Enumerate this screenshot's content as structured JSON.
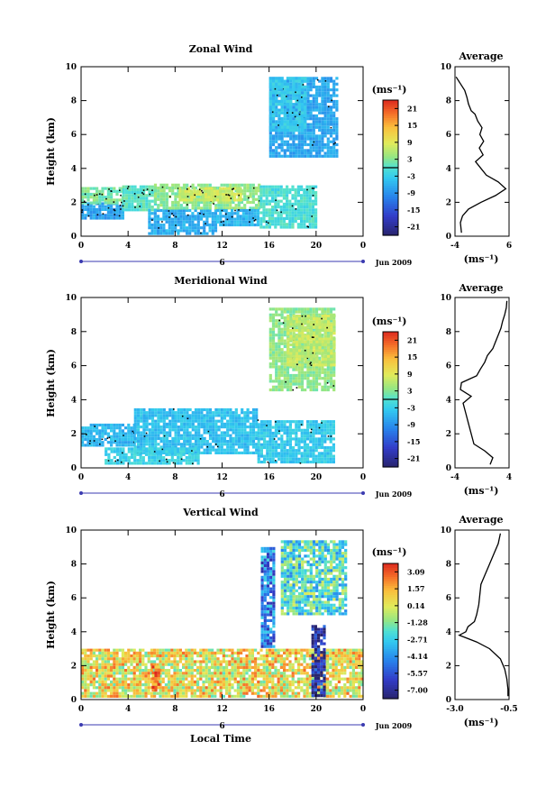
{
  "colorbar_unit": "(ms⁻¹)",
  "avg_title": "Average",
  "avg_unit": "(ms⁻¹)",
  "time_axis_date": "Jun 2009",
  "time_axis_day": "6",
  "xlabel": "Local Time",
  "chart_data": [
    {
      "type": "heatmap",
      "title": "Zonal Wind",
      "ylabel": "Height (km)",
      "x_ticks": [
        "0",
        "4",
        "8",
        "12",
        "16",
        "20",
        "0"
      ],
      "y_ticks": [
        "0",
        "2",
        "4",
        "6",
        "8",
        "10"
      ],
      "xlim": [
        0,
        24
      ],
      "ylim": [
        0,
        10
      ],
      "colorbar": {
        "ticks": [
          "21",
          "15",
          "9",
          "3",
          "-3",
          "-9",
          "-15",
          "-21"
        ],
        "range": [
          -24,
          24
        ]
      },
      "contour_levels": [
        0
      ],
      "regions": [
        {
          "x": [
            0.0,
            3.5
          ],
          "y": [
            1.1,
            2.0
          ],
          "value": -7.5
        },
        {
          "x": [
            0.0,
            3.5
          ],
          "y": [
            2.0,
            2.9
          ],
          "value": 2.5
        },
        {
          "x": [
            3.5,
            6.2
          ],
          "y": [
            1.6,
            3.0
          ],
          "value": 0.5
        },
        {
          "x": [
            5.7,
            11.5
          ],
          "y": [
            0.2,
            1.6
          ],
          "value": -6.5
        },
        {
          "x": [
            6.2,
            15.2
          ],
          "y": [
            1.6,
            3.1
          ],
          "value": 3.5
        },
        {
          "x": [
            8.3,
            13.5
          ],
          "y": [
            2.2,
            2.9
          ],
          "value": 7.5
        },
        {
          "x": [
            11.5,
            15.0
          ],
          "y": [
            0.6,
            1.6
          ],
          "value": -5.5
        },
        {
          "x": [
            15.2,
            20.0
          ],
          "y": [
            0.5,
            3.0
          ],
          "value": -0.5
        },
        {
          "x": [
            16.0,
            21.8
          ],
          "y": [
            4.8,
            9.4
          ],
          "value": -7.0
        },
        {
          "x": [
            16.0,
            19.0
          ],
          "y": [
            6.2,
            9.4
          ],
          "value": -3.5
        }
      ],
      "average": {
        "xlim": [
          -4,
          6
        ],
        "x_ticks": [
          "-4",
          "6"
        ],
        "height": [
          0.2,
          0.8,
          1.2,
          1.6,
          2.0,
          2.4,
          2.8,
          3.2,
          3.6,
          4.0,
          4.4,
          4.8,
          5.2,
          5.6,
          6.0,
          6.4,
          6.8,
          7.2,
          7.4,
          7.8,
          8.2,
          8.6,
          9.0,
          9.4
        ],
        "value": [
          -2.8,
          -3.0,
          -2.6,
          -1.5,
          0.8,
          3.5,
          5.4,
          4.0,
          1.8,
          0.8,
          -0.2,
          1.2,
          0.5,
          1.3,
          0.6,
          1.0,
          0.2,
          -0.3,
          -1.0,
          -1.5,
          -1.8,
          -2.2,
          -3.0,
          -3.8
        ]
      }
    },
    {
      "type": "heatmap",
      "title": "Meridional Wind",
      "ylabel": "Height (km)",
      "x_ticks": [
        "0",
        "4",
        "8",
        "12",
        "16",
        "20",
        "0"
      ],
      "y_ticks": [
        "0",
        "2",
        "4",
        "6",
        "8",
        "10"
      ],
      "xlim": [
        0,
        24
      ],
      "ylim": [
        0,
        10
      ],
      "colorbar": {
        "ticks": [
          "21",
          "15",
          "9",
          "3",
          "-3",
          "-9",
          "-15",
          "-21"
        ],
        "range": [
          -24,
          24
        ]
      },
      "contour_levels": [
        0
      ],
      "regions": [
        {
          "x": [
            0.0,
            4.5
          ],
          "y": [
            1.4,
            2.6
          ],
          "value": -5.5
        },
        {
          "x": [
            4.5,
            15.0
          ],
          "y": [
            0.8,
            3.5
          ],
          "value": -4.5
        },
        {
          "x": [
            2.0,
            10.0
          ],
          "y": [
            0.2,
            1.2
          ],
          "value": -2.5
        },
        {
          "x": [
            15.0,
            21.5
          ],
          "y": [
            0.3,
            2.8
          ],
          "value": -3.5
        },
        {
          "x": [
            16.0,
            21.5
          ],
          "y": [
            4.6,
            9.4
          ],
          "value": 3.5
        },
        {
          "x": [
            17.5,
            21.5
          ],
          "y": [
            6.0,
            9.0
          ],
          "value": 6.5
        }
      ],
      "average": {
        "xlim": [
          -5,
          5
        ],
        "x_ticks": [
          "-4",
          "4"
        ],
        "height": [
          0.2,
          0.6,
          1.0,
          1.4,
          2.0,
          2.6,
          3.2,
          3.8,
          4.2,
          4.6,
          5.0,
          5.4,
          5.8,
          6.2,
          6.6,
          7.0,
          7.4,
          7.8,
          8.2,
          8.6,
          9.0,
          9.4,
          9.8
        ],
        "value": [
          1.5,
          2.0,
          0.5,
          -1.5,
          -2.0,
          -2.5,
          -3.0,
          -3.5,
          -2.0,
          -4.0,
          -3.8,
          -1.0,
          -0.3,
          0.5,
          1.0,
          2.0,
          2.5,
          3.0,
          3.5,
          3.8,
          4.2,
          4.5,
          4.6
        ]
      }
    },
    {
      "type": "heatmap",
      "title": "Vertical Wind",
      "ylabel": "Height (km)",
      "xlabel": "Local Time",
      "x_ticks": [
        "0",
        "4",
        "8",
        "12",
        "16",
        "20",
        "0"
      ],
      "y_ticks": [
        "0",
        "2",
        "4",
        "6",
        "8",
        "10"
      ],
      "xlim": [
        0,
        24
      ],
      "ylim": [
        0,
        10
      ],
      "colorbar": {
        "ticks": [
          "3.09",
          "1.57",
          "0.14",
          "-1.28",
          "-2.71",
          "-4.14",
          "-5.57",
          "-7.00"
        ],
        "range": [
          -7.7,
          3.8
        ]
      },
      "regions": [
        {
          "x": [
            0.0,
            24.0
          ],
          "y": [
            0.2,
            3.0
          ],
          "value": 0.5
        },
        {
          "x": [
            6.0,
            6.7
          ],
          "y": [
            0.6,
            2.0
          ],
          "value": 2.6
        },
        {
          "x": [
            17.0,
            22.5
          ],
          "y": [
            5.0,
            9.4
          ],
          "value": -2.2
        },
        {
          "x": [
            19.6,
            20.8
          ],
          "y": [
            0.3,
            4.4
          ],
          "value": -7.0
        },
        {
          "x": [
            15.3,
            16.5
          ],
          "y": [
            3.2,
            9.0
          ],
          "value": -4.5
        }
      ],
      "average": {
        "xlim": [
          -3.0,
          -0.5
        ],
        "x_ticks": [
          "-3.0",
          "-0.5"
        ],
        "height": [
          0.2,
          0.6,
          1.2,
          1.8,
          2.4,
          3.0,
          3.4,
          3.8,
          4.0,
          4.3,
          4.6,
          5.0,
          5.6,
          6.2,
          6.8,
          7.4,
          8.0,
          8.6,
          9.2,
          9.8
        ],
        "value": [
          -0.55,
          -0.55,
          -0.6,
          -0.7,
          -0.9,
          -1.4,
          -2.0,
          -2.8,
          -2.5,
          -2.4,
          -2.1,
          -2.0,
          -1.9,
          -1.85,
          -1.8,
          -1.6,
          -1.4,
          -1.2,
          -1.0,
          -0.9
        ]
      }
    }
  ]
}
